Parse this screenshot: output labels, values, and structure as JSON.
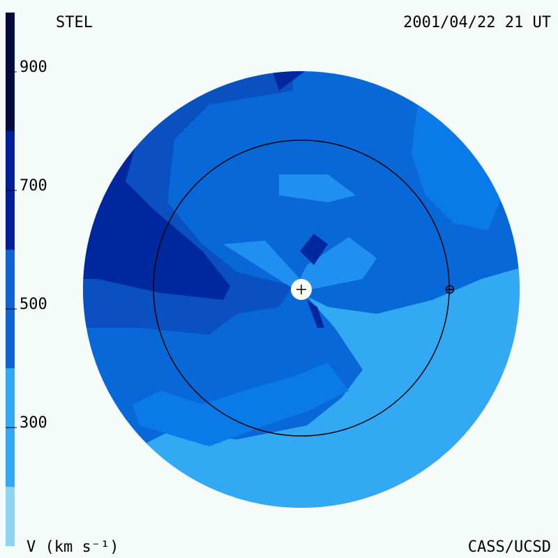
{
  "header": {
    "instrument": "STEL",
    "time": "2001/04/22 21 UT",
    "credit": "CASS/UCSD"
  },
  "colorbar": {
    "label": "V (km s⁻¹)",
    "bounds": [
      100,
      200,
      400,
      600,
      800,
      1000
    ],
    "colors": [
      "#8ed2f4",
      "#33a9f3",
      "#0e62d2",
      "#001f98",
      "#000c3e"
    ],
    "ticks": [
      300,
      500,
      700,
      900
    ]
  }
}
